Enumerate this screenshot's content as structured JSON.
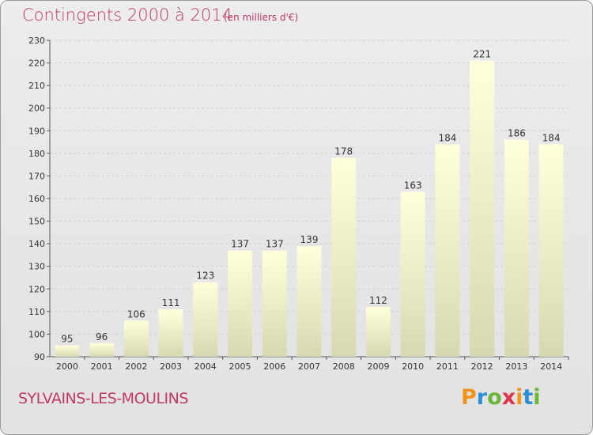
{
  "header": {
    "title": "Contingents 2000 à 2014",
    "subtitle": "(en milliers d'€)"
  },
  "footer": {
    "commune": "SYLVAINS-LES-MOULINS",
    "logo": {
      "text": "Proxiti",
      "letters": [
        {
          "char": "P",
          "color": "#f0941e"
        },
        {
          "char": "r",
          "color": "#2a8fd6"
        },
        {
          "char": "o",
          "color": "#6ab536"
        },
        {
          "char": "x",
          "color": "#e0334c"
        },
        {
          "char": "i",
          "color": "#f0941e"
        },
        {
          "char": "t",
          "color": "#2a8fd6"
        },
        {
          "char": "i",
          "color": "#6ab536"
        }
      ]
    }
  },
  "colors": {
    "accent": "#c0386a",
    "bar_top": "#ffffdc",
    "bar_bottom": "#d8d8b0",
    "grid": "#d0d0d0"
  },
  "chart_data": {
    "type": "bar",
    "title": "Contingents 2000 à 2014",
    "subtitle": "(en milliers d'€)",
    "categories": [
      "2000",
      "2001",
      "2002",
      "2003",
      "2004",
      "2005",
      "2006",
      "2007",
      "2008",
      "2009",
      "2010",
      "2011",
      "2012",
      "2013",
      "2014"
    ],
    "values": [
      95,
      96,
      106,
      111,
      123,
      137,
      137,
      139,
      178,
      112,
      163,
      184,
      221,
      186,
      184
    ],
    "ylim": [
      90,
      230
    ],
    "yticks": [
      90,
      100,
      110,
      120,
      130,
      140,
      150,
      160,
      170,
      180,
      190,
      200,
      210,
      220,
      230
    ],
    "grid": true,
    "data_labels": true
  }
}
